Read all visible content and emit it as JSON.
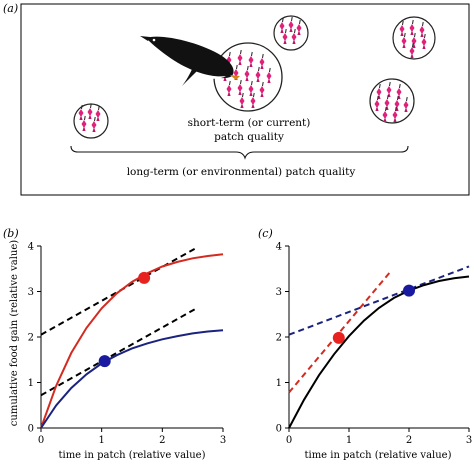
{
  "panel_a": {
    "label": "(a)",
    "short_term_line1": "short-term (or current)",
    "short_term_line2": "patch quality",
    "long_term": "long-term (or environmental) patch quality",
    "colors": {
      "fish": "#e0207a",
      "penguin": "#111111"
    }
  },
  "panel_b": {
    "label": "(b)",
    "ylabel": "cumulative food gain (relative value)",
    "xlabel": "time in patch (relative value)",
    "xticks": [
      "0",
      "1",
      "2",
      "3"
    ],
    "yticks": [
      "0",
      "1",
      "2",
      "3",
      "4"
    ]
  },
  "panel_c": {
    "label": "(c)",
    "xlabel": "time in patch (relative value)",
    "xticks": [
      "0",
      "1",
      "2",
      "3"
    ],
    "yticks": [
      "0",
      "1",
      "2",
      "3",
      "4"
    ]
  },
  "chart_data": [
    {
      "type": "line",
      "panel": "b",
      "xlim": [
        0,
        3
      ],
      "ylim": [
        0,
        4
      ],
      "series": [
        {
          "color": "#d42a20",
          "x": [
            0,
            0.25,
            0.5,
            0.75,
            1.0,
            1.25,
            1.5,
            1.75,
            2.0,
            2.25,
            2.5,
            2.75,
            3.0
          ],
          "y": [
            0,
            0.93,
            1.65,
            2.2,
            2.63,
            2.96,
            3.21,
            3.4,
            3.55,
            3.65,
            3.73,
            3.78,
            3.82
          ]
        },
        {
          "color": "#1a237e",
          "x": [
            0,
            0.25,
            0.5,
            0.75,
            1.0,
            1.25,
            1.5,
            1.75,
            2.0,
            2.25,
            2.5,
            2.75,
            3.0
          ],
          "y": [
            0,
            0.5,
            0.88,
            1.18,
            1.42,
            1.6,
            1.75,
            1.86,
            1.95,
            2.02,
            2.08,
            2.12,
            2.15
          ]
        }
      ],
      "points": [
        {
          "x": 1.7,
          "y": 3.3,
          "color": "#e8231f"
        },
        {
          "x": 1.05,
          "y": 1.47,
          "color": "#1a1aa0"
        }
      ],
      "tangents": [
        {
          "x": [
            0,
            2.55
          ],
          "y": [
            2.05,
            3.95
          ],
          "color": "#000000"
        },
        {
          "x": [
            0,
            2.55
          ],
          "y": [
            0.72,
            2.62
          ],
          "color": "#000000"
        }
      ]
    },
    {
      "type": "line",
      "panel": "c",
      "xlim": [
        0,
        3
      ],
      "ylim": [
        0,
        4
      ],
      "series": [
        {
          "color": "#000000",
          "x": [
            0,
            0.25,
            0.5,
            0.75,
            1.0,
            1.25,
            1.5,
            1.75,
            2.0,
            2.25,
            2.5,
            2.75,
            3.0
          ],
          "y": [
            0,
            0.62,
            1.16,
            1.62,
            2.02,
            2.36,
            2.64,
            2.86,
            3.02,
            3.14,
            3.23,
            3.29,
            3.33
          ]
        }
      ],
      "points": [
        {
          "x": 0.83,
          "y": 1.98,
          "color": "#e8231f"
        },
        {
          "x": 2.0,
          "y": 3.02,
          "color": "#1a1aa0"
        }
      ],
      "tangents": [
        {
          "x": [
            0,
            1.7
          ],
          "y": [
            0.78,
            3.45
          ],
          "color": "#d42a20"
        },
        {
          "x": [
            0,
            3.0
          ],
          "y": [
            2.05,
            3.55
          ],
          "color": "#1a237e"
        }
      ]
    }
  ]
}
